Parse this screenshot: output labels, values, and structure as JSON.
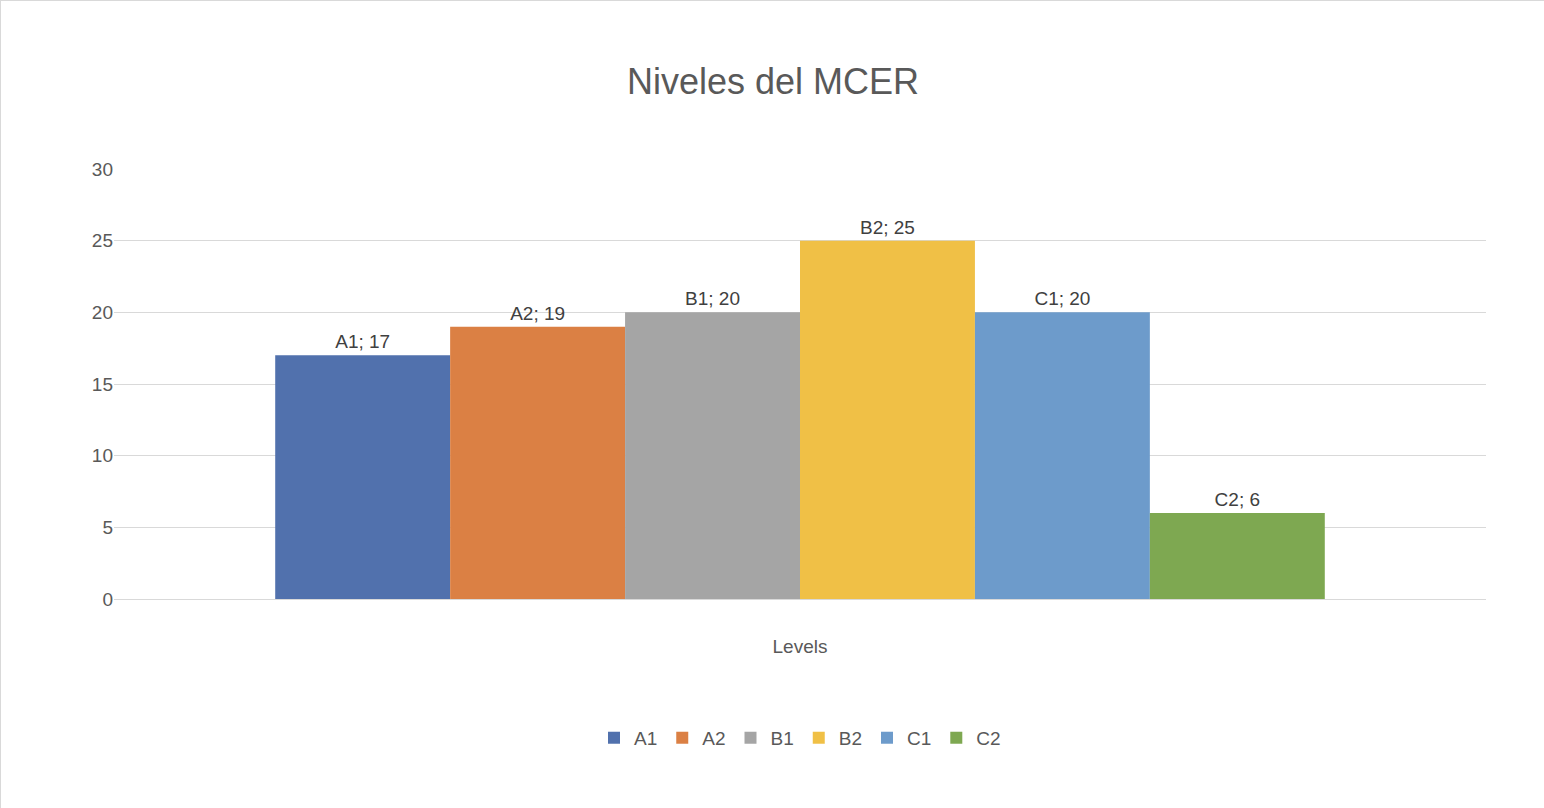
{
  "chart_data": {
    "type": "bar",
    "title": "Niveles del MCER",
    "categories": [
      "Levels"
    ],
    "series": [
      {
        "name": "A1",
        "color": "#5171ad",
        "values": [
          17
        ],
        "value_labels": [
          "A1; 17"
        ]
      },
      {
        "name": "A2",
        "color": "#db8044",
        "values": [
          19
        ],
        "value_labels": [
          "A2; 19"
        ]
      },
      {
        "name": "B1",
        "color": "#a5a5a5",
        "values": [
          20
        ],
        "value_labels": [
          "B1; 20"
        ]
      },
      {
        "name": "B2",
        "color": "#f0c046",
        "values": [
          25
        ],
        "value_labels": [
          "B2; 25"
        ]
      },
      {
        "name": "C1",
        "color": "#6d9bcb",
        "values": [
          20
        ],
        "value_labels": [
          "C1; 20"
        ]
      },
      {
        "name": "C2",
        "color": "#7ea851",
        "values": [
          6
        ],
        "value_labels": [
          "C2; 6"
        ]
      }
    ],
    "ylim": [
      0,
      30
    ],
    "yticks": [
      0,
      5,
      10,
      15,
      20,
      25,
      30
    ],
    "grid": true,
    "legend": "bottom",
    "data_labels": true
  }
}
